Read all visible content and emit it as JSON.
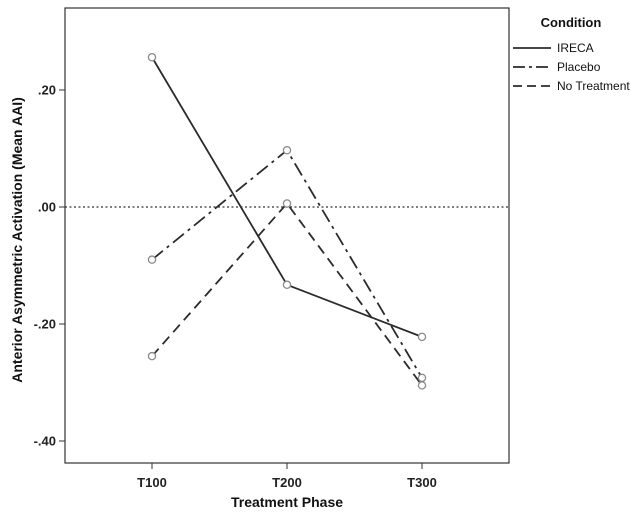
{
  "chart_data": {
    "type": "line",
    "categories": [
      "T100",
      "T200",
      "T300"
    ],
    "xlabel": "Treatment Phase",
    "ylabel": "Anterior Asymmetric Activation (Mean AAI)",
    "ylim": [
      -0.44,
      0.33
    ],
    "yticks": [
      0.2,
      0.0,
      -0.2,
      -0.4
    ],
    "ytick_labels": [
      ".20",
      ".00",
      "-.20",
      "-.40"
    ],
    "reference_line": {
      "y": 0.0,
      "style": "dotted"
    },
    "grid": false,
    "legend": {
      "title": "Condition",
      "placement": "top-right, outside plot"
    },
    "series": [
      {
        "name": "IRECA",
        "values": [
          0.256,
          -0.133,
          -0.222
        ],
        "line_style": "solid",
        "color": "#2b2b2b"
      },
      {
        "name": "Placebo",
        "values": [
          -0.09,
          0.097,
          -0.292
        ],
        "line_style": "dash-dot",
        "color": "#2b2b2b"
      },
      {
        "name": "No Treatment",
        "values": [
          -0.255,
          0.006,
          -0.305
        ],
        "line_style": "dashed",
        "color": "#2b2b2b"
      }
    ],
    "marker": {
      "shape": "open-circle",
      "color": "#8a8a8a"
    }
  }
}
